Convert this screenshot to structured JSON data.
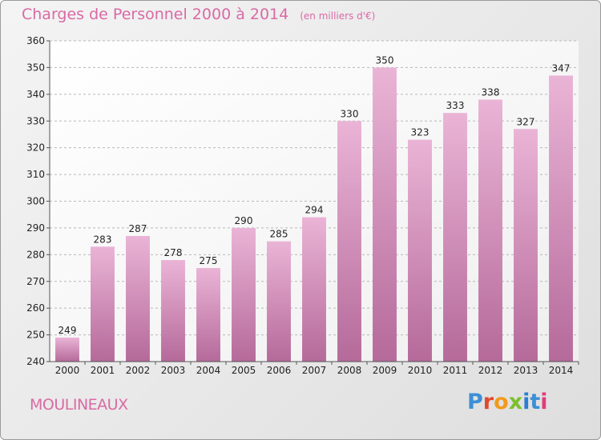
{
  "header": {
    "title": "Charges de Personnel 2000 à 2014",
    "subtitle": "(en milliers d'€)"
  },
  "footer": {
    "commune": "MOULINEAUX",
    "logo_text": "Proxiti",
    "logo_colors": [
      "#3d8fd6",
      "#e0492d",
      "#f29a1c",
      "#7cbf2e",
      "#2b7fd0",
      "#3d8fd6",
      "#e23c7a"
    ]
  },
  "colors": {
    "accent": "#d96aa4",
    "bar_top": "#eab4d6",
    "bar_bottom": "#b56a9a",
    "grid": "#b8b8b8",
    "axis_text": "#222222"
  },
  "chart_data": {
    "type": "bar",
    "categories": [
      "2000",
      "2001",
      "2002",
      "2003",
      "2004",
      "2005",
      "2006",
      "2007",
      "2008",
      "2009",
      "2010",
      "2011",
      "2012",
      "2013",
      "2014"
    ],
    "values": [
      249,
      283,
      287,
      278,
      275,
      290,
      285,
      294,
      330,
      350,
      323,
      333,
      338,
      327,
      347
    ],
    "ylim": [
      240,
      360
    ],
    "yticks": [
      240,
      250,
      260,
      270,
      280,
      290,
      300,
      310,
      320,
      330,
      340,
      350,
      360
    ],
    "grid": true,
    "xlabel": "",
    "ylabel": ""
  }
}
